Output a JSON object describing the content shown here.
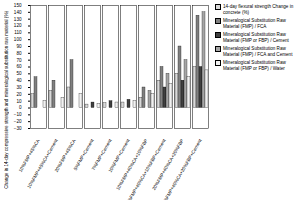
{
  "chart_data": {
    "type": "bar",
    "y_label": "Change in 14-day compressive strength and mineralogical substitution raw material (%)",
    "categories": [
      "10%FMP+45%CA",
      "10%FMP+45%CA+Cement",
      "20%FMP+45%CA",
      "5%FMP+Cement",
      "7%FMP+Cement",
      "10%FMP+Cement",
      "10%FMP+40%CA+10%FBP",
      "10%FMP+40%CA+10%FBP+Cement",
      "20%FMP+40%CA+20%FBP",
      "20%FMP+40%CA+20%FBP+Cement"
    ],
    "series": [
      {
        "name": "14-day flexural strength Change in concrete (%)",
        "color": "#d9d9d9",
        "values": [
          20,
          25,
          30,
          5,
          7,
          8,
          15,
          40,
          50,
          60
        ]
      },
      {
        "name": "Mineralogical Substitution Raw Material (FMP) / FCA",
        "color": "#808080",
        "values": [
          45,
          40,
          70,
          0,
          0,
          0,
          30,
          60,
          90,
          135
        ]
      },
      {
        "name": "Mineralogical Substitution Raw Material (FMP or FBP) / Cement",
        "color": "#404040",
        "values": [
          0,
          0,
          0,
          8,
          10,
          12,
          0,
          30,
          40,
          60
        ]
      },
      {
        "name": "Mineralogical Substitution Raw Material (FMP) / FCA and Cement",
        "color": "#a6a6a6",
        "values": [
          0,
          0,
          0,
          0,
          0,
          0,
          25,
          50,
          70,
          140
        ]
      },
      {
        "name": "Mineralogical Substitution Raw Material (FMP or FBP) / Water",
        "color": "#f2f2f2",
        "values": [
          10,
          15,
          20,
          6,
          8,
          10,
          20,
          35,
          45,
          55
        ]
      }
    ],
    "ylim": [
      -30,
      150
    ],
    "yticks": [
      -30,
      -20,
      -10,
      0,
      10,
      20,
      30,
      40,
      50,
      60,
      70,
      80,
      90,
      100,
      110,
      120,
      130,
      140,
      150
    ],
    "grid": false,
    "legend": "right"
  }
}
